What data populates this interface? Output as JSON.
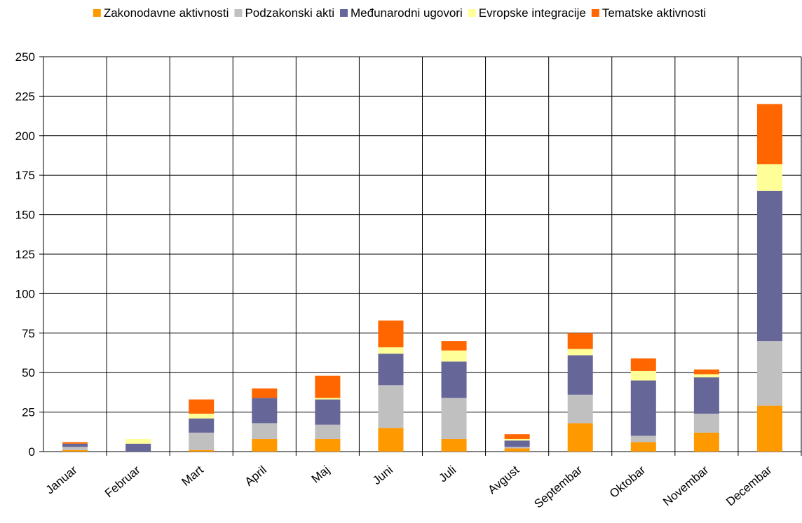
{
  "chart_data": {
    "type": "bar",
    "stacked": true,
    "categories": [
      "Januar",
      "Februar",
      "Mart",
      "April",
      "Maj",
      "Juni",
      "Juli",
      "Avgust",
      "Septembar",
      "Oktobar",
      "Novembar",
      "Decembar"
    ],
    "series": [
      {
        "name": "Zakonodavne aktivnosti",
        "color": "#ff9900",
        "values": [
          1,
          0,
          1,
          8,
          8,
          15,
          8,
          2,
          18,
          6,
          12,
          29
        ]
      },
      {
        "name": "Podzakonski akti",
        "color": "#c0c0c0",
        "values": [
          2,
          0,
          11,
          10,
          9,
          27,
          26,
          1,
          18,
          4,
          12,
          41
        ]
      },
      {
        "name": "Međunarodni ugovori",
        "color": "#666699",
        "values": [
          2,
          5,
          9,
          16,
          16,
          20,
          23,
          4,
          25,
          35,
          23,
          95
        ]
      },
      {
        "name": "Evropske integracije",
        "color": "#ffff99",
        "values": [
          0,
          3,
          3,
          0,
          1,
          4,
          7,
          1,
          4,
          6,
          2,
          17
        ]
      },
      {
        "name": "Tematske aktivnosti",
        "color": "#ff6600",
        "values": [
          1,
          0,
          9,
          6,
          14,
          17,
          6,
          3,
          10,
          8,
          3,
          38
        ]
      }
    ],
    "ylim": [
      0,
      250
    ],
    "yticks": [
      0,
      25,
      50,
      75,
      100,
      125,
      150,
      175,
      200,
      225,
      250
    ],
    "grid": true,
    "legend": "top"
  }
}
